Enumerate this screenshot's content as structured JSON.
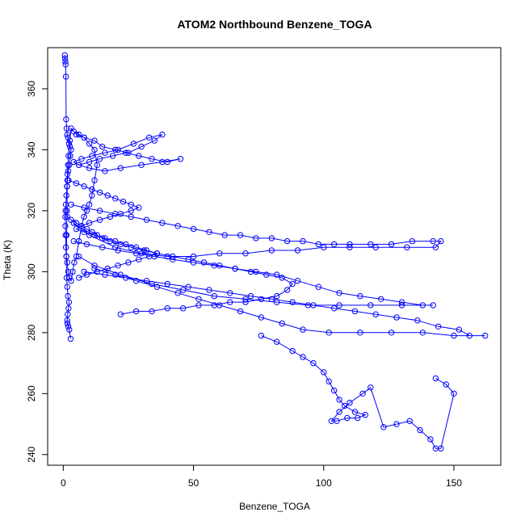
{
  "chart_data": {
    "type": "line",
    "title": "ATOM2 Northbound Benzene_TOGA",
    "xlabel": "Benzene_TOGA",
    "ylabel": "Theta (K)",
    "xlim": [
      -6,
      168
    ],
    "ylim": [
      236.5,
      373.5
    ],
    "x_ticks": [
      0,
      50,
      100,
      150
    ],
    "y_ticks": [
      240,
      260,
      280,
      300,
      320,
      340,
      360
    ],
    "grid": false,
    "marker": "open-circle",
    "line_color": "#0000ff",
    "series": [
      {
        "x": [
          0.6,
          0.7,
          0.8,
          0.9,
          1.0,
          1.1,
          1.3,
          1.5,
          1.8,
          2.2,
          2.6,
          3.0,
          2.7,
          2.3,
          1.9,
          1.6,
          1.4,
          1.2,
          1.0,
          0.9,
          0.8,
          0.8,
          0.9,
          1.0,
          1.2,
          1.5,
          1.9,
          2.4,
          3.0,
          3.6,
          4.2,
          5.0,
          6.0,
          7.0,
          8.0,
          9.0,
          10.0,
          11.0,
          12.0,
          13.0,
          12.0,
          10.0,
          8.0,
          6.0,
          4.0,
          3.0,
          2.5,
          2.0,
          1.8,
          1.6,
          1.5,
          1.4,
          1.3,
          1.2,
          1.3,
          1.5,
          1.8,
          2.2,
          2.0,
          1.7,
          1.5,
          1.6,
          1.9,
          2.3,
          2.8
        ],
        "y": [
          371,
          370,
          369,
          368,
          364,
          350,
          347,
          345,
          344,
          342,
          341,
          340,
          338,
          335,
          333,
          330,
          328,
          325,
          322,
          320,
          318,
          315,
          312,
          308,
          305,
          303,
          300,
          298,
          297,
          300,
          303,
          305,
          310,
          315,
          318,
          320,
          322,
          325,
          330,
          335,
          340,
          342,
          344,
          345,
          346,
          347,
          343,
          338,
          335,
          332,
          328,
          320,
          312,
          305,
          298,
          295,
          292,
          290,
          288,
          286,
          284,
          283,
          282,
          281,
          278
        ]
      },
      {
        "x": [
          5.0,
          8.0,
          12.0,
          15.0,
          20.0,
          25.0,
          30.0,
          35.0,
          38.0,
          33.0,
          27.0,
          21.0,
          16.0,
          11.0,
          7.0,
          4.0,
          6.0,
          10.0,
          14.0,
          19.0,
          24.0,
          29.0,
          34.0,
          40.0,
          45.0,
          38.0,
          30.0,
          22.0,
          16.0,
          10.0,
          6.0
        ],
        "y": [
          345,
          344,
          343,
          341,
          340,
          339,
          341,
          343,
          345,
          344,
          342,
          340,
          339,
          338,
          337,
          336,
          335,
          336,
          337,
          338,
          339,
          338,
          337,
          336,
          337,
          336,
          335,
          334,
          333,
          334,
          335
        ]
      },
      {
        "x": [
          3.0,
          8.0,
          14.0,
          20.0,
          26.0,
          32.0,
          38.0,
          44.0,
          50.0,
          56.0,
          62.0,
          68.0,
          74.0,
          80.0,
          86.0,
          92.0,
          98.0,
          104.0,
          110.0,
          118.0,
          126.0,
          134.0,
          142.0,
          145.0,
          143.0,
          132.0,
          120.0,
          110.0,
          100.0,
          90.0,
          80.0,
          70.0,
          60.0,
          50.0,
          40.0,
          30.0,
          20.0,
          10.0,
          4.0
        ],
        "y": [
          322,
          321,
          320,
          319,
          318,
          317,
          316,
          315,
          314,
          313,
          312,
          312,
          311,
          311,
          310,
          310,
          309,
          309,
          309,
          309,
          309,
          310,
          310,
          310,
          308,
          308,
          308,
          308,
          308,
          307,
          307,
          306,
          306,
          305,
          305,
          306,
          308,
          312,
          316
        ]
      },
      {
        "x": [
          4.0,
          9.0,
          15.0,
          21.0,
          28.0,
          35.0,
          42.0,
          50.0,
          58.0,
          66.0,
          74.0,
          82.0,
          90.0,
          98.0,
          106.0,
          114.0,
          122.0,
          130.0,
          138.0,
          142.0,
          130.0,
          118.0,
          106.0,
          94.0,
          82.0,
          70.0,
          58.0,
          46.0,
          34.0,
          22.0,
          12.0,
          6.0
        ],
        "y": [
          310,
          309,
          308,
          307,
          306,
          305,
          304,
          303,
          302,
          301,
          300,
          299,
          297,
          295,
          293,
          292,
          291,
          290,
          289,
          289,
          289,
          289,
          289,
          289,
          290,
          291,
          292,
          294,
          296,
          299,
          302,
          305
        ]
      },
      {
        "x": [
          8.0,
          16.0,
          24.0,
          32.0,
          40.0,
          48.0,
          56.0,
          64.0,
          72.0,
          80.0,
          88.0,
          96.0,
          104.0,
          112.0,
          120.0,
          128.0,
          136.0,
          144.0,
          152.0,
          156.0,
          162.0,
          150.0,
          138.0,
          126.0,
          114.0,
          102.0,
          92.0,
          84.0,
          76.0,
          68.0,
          60.0,
          52.0,
          44.0,
          36.0,
          28.0,
          20.0,
          12.0
        ],
        "y": [
          300,
          299,
          298,
          297,
          296,
          295,
          294,
          293,
          292,
          291,
          290,
          289,
          288,
          287,
          286,
          285,
          284,
          282,
          281,
          279,
          279,
          279,
          280,
          280,
          280,
          280,
          281,
          283,
          285,
          287,
          289,
          291,
          293,
          295,
          297,
          299,
          301
        ]
      },
      {
        "x": [
          76.0,
          82.0,
          88.0,
          92.0,
          96.0,
          100.0,
          102.0,
          104.0,
          106.0,
          108.0,
          112.0,
          116.0,
          113.0,
          109.0,
          105.0,
          103.0,
          106.0,
          110.0,
          115.0,
          118.0,
          123.0,
          128.0,
          133.0,
          137.0,
          141.0,
          143.0,
          145.0,
          150.0,
          147.0,
          143.0
        ],
        "y": [
          279,
          277,
          274,
          272,
          270,
          267,
          264,
          261,
          258,
          256,
          254,
          253,
          252,
          252,
          251,
          251,
          254,
          257,
          260,
          262,
          249,
          250,
          251,
          248,
          245,
          242,
          242,
          260,
          263,
          265
        ]
      },
      {
        "x": [
          2.0,
          5.0,
          8.0,
          11.0,
          14.0,
          17.0,
          20.0,
          23.0,
          26.0,
          29.0,
          26.0,
          22.0,
          18.0,
          14.0,
          10.0,
          7.0,
          5.0,
          8.0,
          12.0,
          16.0,
          20.0,
          24.0,
          28.0,
          32.0,
          36.0,
          33.0,
          29.0,
          25.0,
          21.0,
          17.0,
          13.0,
          9.0,
          6.0
        ],
        "y": [
          330,
          329,
          328,
          327,
          326,
          325,
          324,
          323,
          322,
          321,
          320,
          319,
          318,
          317,
          316,
          315,
          314,
          313,
          312,
          311,
          310,
          309,
          308,
          307,
          306,
          305,
          304,
          303,
          302,
          301,
          300,
          299,
          298
        ]
      },
      {
        "x": [
          1.5,
          3.0,
          5.0,
          7.0,
          9.0,
          11.0,
          13.0,
          15.0,
          18.0,
          22.0,
          26.0,
          31.0,
          36.0,
          42.0,
          48.0,
          54.0,
          60.0,
          66.0,
          72.0,
          78.0,
          84.0,
          88.0,
          86.0,
          82.0,
          76.0,
          70.0,
          64.0,
          58.0,
          52.0,
          46.0,
          40.0,
          34.0,
          28.0,
          22.0
        ],
        "y": [
          318,
          317,
          316,
          315,
          314,
          313,
          312,
          311,
          310,
          309,
          308,
          307,
          306,
          305,
          304,
          303,
          302,
          301,
          300,
          299,
          298,
          296,
          294,
          292,
          291,
          290,
          290,
          289,
          289,
          288,
          288,
          287,
          287,
          286
        ]
      }
    ]
  }
}
